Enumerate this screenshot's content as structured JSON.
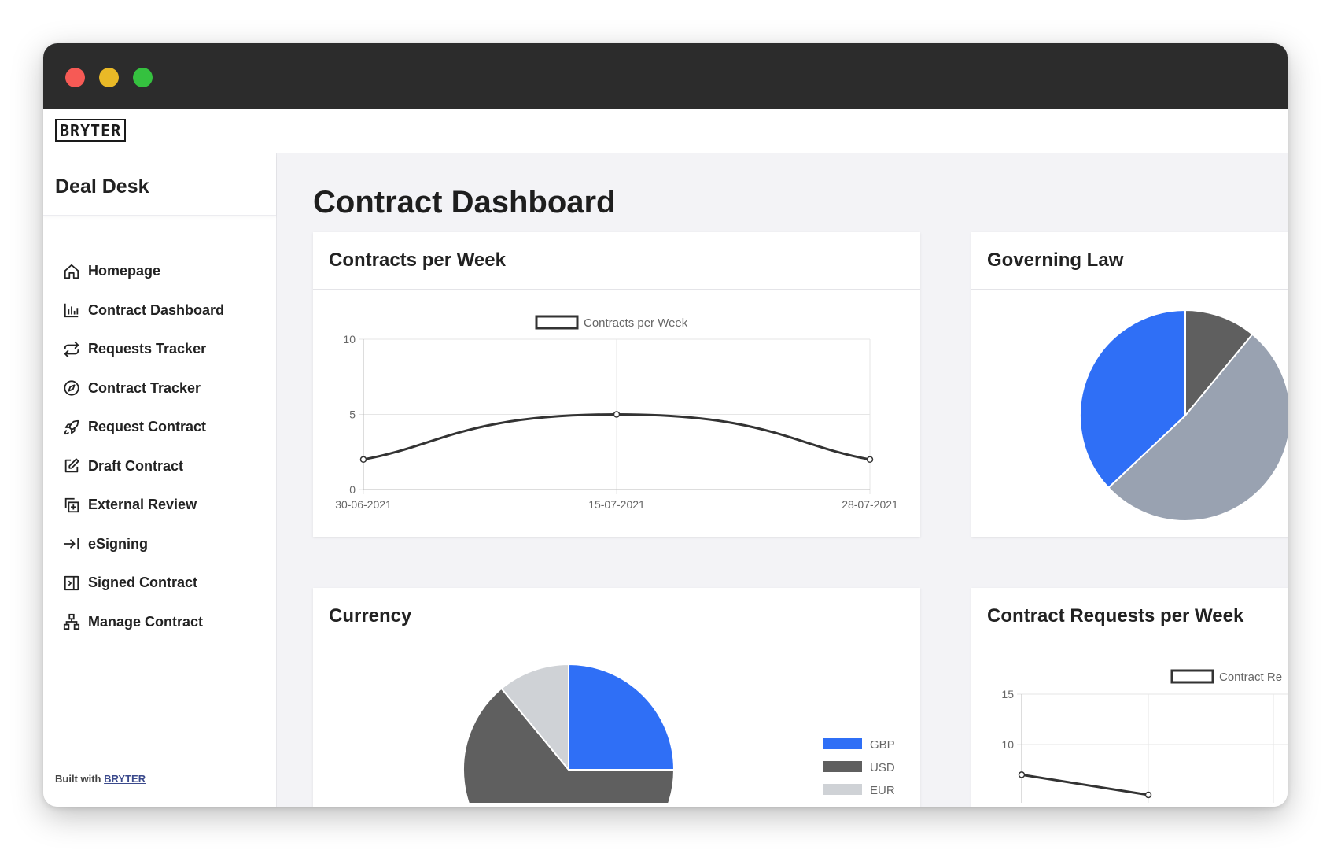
{
  "brand": {
    "logo": "BRYTER"
  },
  "sidebar": {
    "app_name": "Deal Desk",
    "items": [
      {
        "label": "Homepage",
        "icon": "home-icon"
      },
      {
        "label": "Contract Dashboard",
        "icon": "bar-chart-icon"
      },
      {
        "label": "Requests Tracker",
        "icon": "repeat-icon"
      },
      {
        "label": "Contract Tracker",
        "icon": "compass-icon"
      },
      {
        "label": "Request Contract",
        "icon": "rocket-icon"
      },
      {
        "label": "Draft Contract",
        "icon": "edit-icon"
      },
      {
        "label": "External Review",
        "icon": "copy-plus-icon"
      },
      {
        "label": "eSigning",
        "icon": "arrow-to-line-icon"
      },
      {
        "label": "Signed Contract",
        "icon": "sidebar-close-icon"
      },
      {
        "label": "Manage Contract",
        "icon": "sitemap-icon"
      }
    ],
    "footer_prefix": "Built with",
    "footer_link": "BRYTER"
  },
  "main": {
    "title": "Contract Dashboard",
    "cards": {
      "contracts_per_week": "Contracts per Week",
      "governing_law": "Governing Law",
      "currency": "Currency",
      "requests_per_week": "Contract Requests per Week"
    }
  },
  "colors": {
    "blue": "#2f6ff6",
    "dark_gray": "#5f5f5f",
    "slate": "#99a2b1",
    "light_gray": "#cfd2d6",
    "line": "#333333"
  },
  "chart_data": [
    {
      "type": "line",
      "title": "Contracts per Week",
      "series": [
        {
          "name": "Contracts per Week",
          "values": [
            2,
            5,
            2
          ]
        }
      ],
      "x": [
        "30-06-2021",
        "15-07-2021",
        "28-07-2021"
      ],
      "yticks": [
        0,
        5,
        10
      ],
      "ylim": [
        0,
        10
      ],
      "grid": true,
      "legend": "top-center"
    },
    {
      "type": "pie",
      "title": "Governing Law",
      "slices": [
        {
          "value": 11,
          "color": "#5f5f5f"
        },
        {
          "value": 52,
          "color": "#99a2b1"
        },
        {
          "value": 37,
          "color": "#2f6ff6"
        }
      ]
    },
    {
      "type": "pie",
      "title": "Currency",
      "labels": [
        "GBP",
        "USD",
        "EUR"
      ],
      "slices": [
        {
          "label": "GBP",
          "value": 25,
          "color": "#2f6ff6"
        },
        {
          "label": "USD",
          "value": 64,
          "color": "#5f5f5f"
        },
        {
          "label": "EUR",
          "value": 11,
          "color": "#cfd2d6"
        }
      ],
      "legend": "right"
    },
    {
      "type": "line",
      "title": "Contract Requests per Week",
      "series": [
        {
          "name": "Contract Re",
          "values": [
            7,
            5
          ]
        }
      ],
      "yticks": [
        10,
        15
      ],
      "ylim": [
        5,
        15
      ],
      "grid": true,
      "legend": "top-center"
    }
  ]
}
